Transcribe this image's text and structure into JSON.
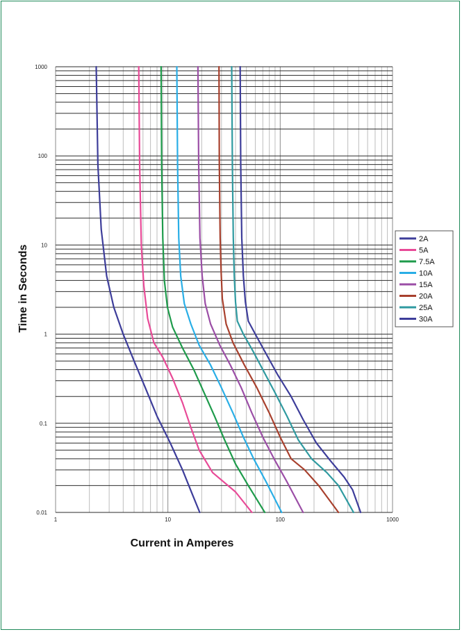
{
  "chart_data": {
    "type": "line",
    "xlabel": "Current in Amperes",
    "ylabel": "Time in Seconds",
    "x_scale": "log",
    "y_scale": "log",
    "xlim": [
      1,
      1000
    ],
    "ylim": [
      0.01,
      1000
    ],
    "x_ticks": [
      "1",
      "10",
      "100",
      "1000"
    ],
    "y_ticks": [
      "1000",
      "100",
      "10",
      "1",
      "0.1",
      "0.01"
    ],
    "grid": true,
    "legend_position": "right",
    "series": [
      {
        "name": "2A",
        "color": "#3d3d9a",
        "points": [
          [
            2.3,
            1000
          ],
          [
            2.38,
            80
          ],
          [
            2.55,
            15
          ],
          [
            2.85,
            4.5
          ],
          [
            3.3,
            2
          ],
          [
            4.0,
            1.0
          ],
          [
            5.0,
            0.5
          ],
          [
            6.3,
            0.25
          ],
          [
            8.0,
            0.12
          ],
          [
            10.5,
            0.06
          ],
          [
            13.5,
            0.03
          ],
          [
            16.5,
            0.016
          ],
          [
            19.2,
            0.01
          ]
        ]
      },
      {
        "name": "5A",
        "color": "#e84a97",
        "points": [
          [
            5.5,
            1000
          ],
          [
            5.6,
            80
          ],
          [
            5.8,
            10
          ],
          [
            6.1,
            3.5
          ],
          [
            6.6,
            1.5
          ],
          [
            7.5,
            0.8
          ],
          [
            9.0,
            0.55
          ],
          [
            11,
            0.32
          ],
          [
            13.5,
            0.17
          ],
          [
            16,
            0.09
          ],
          [
            19,
            0.05
          ],
          [
            25,
            0.028
          ],
          [
            40,
            0.017
          ],
          [
            56,
            0.01
          ]
        ]
      },
      {
        "name": "7.5A",
        "color": "#1e9b4b",
        "points": [
          [
            8.7,
            1000
          ],
          [
            8.8,
            80
          ],
          [
            9.0,
            12
          ],
          [
            9.3,
            4
          ],
          [
            9.9,
            2
          ],
          [
            11,
            1.2
          ],
          [
            13.5,
            0.7
          ],
          [
            17,
            0.4
          ],
          [
            21,
            0.22
          ],
          [
            26,
            0.12
          ],
          [
            32,
            0.065
          ],
          [
            40,
            0.035
          ],
          [
            52,
            0.02
          ],
          [
            73,
            0.01
          ]
        ]
      },
      {
        "name": "10A",
        "color": "#29aee6",
        "points": [
          [
            12,
            1000
          ],
          [
            12.2,
            80
          ],
          [
            12.5,
            12
          ],
          [
            13,
            4.5
          ],
          [
            14,
            2.2
          ],
          [
            16,
            1.3
          ],
          [
            19,
            0.75
          ],
          [
            24,
            0.45
          ],
          [
            30,
            0.25
          ],
          [
            38,
            0.13
          ],
          [
            47,
            0.07
          ],
          [
            58,
            0.04
          ],
          [
            75,
            0.022
          ],
          [
            103,
            0.01
          ]
        ]
      },
      {
        "name": "15A",
        "color": "#9b4ea6",
        "points": [
          [
            18.5,
            1000
          ],
          [
            18.8,
            80
          ],
          [
            19.3,
            12
          ],
          [
            20.2,
            4.5
          ],
          [
            21.5,
            2.2
          ],
          [
            24,
            1.3
          ],
          [
            29,
            0.75
          ],
          [
            36,
            0.45
          ],
          [
            45,
            0.25
          ],
          [
            56,
            0.13
          ],
          [
            70,
            0.07
          ],
          [
            88,
            0.04
          ],
          [
            115,
            0.022
          ],
          [
            160,
            0.01
          ]
        ]
      },
      {
        "name": "20A",
        "color": "#a8402d",
        "points": [
          [
            28.5,
            1000
          ],
          [
            28.7,
            80
          ],
          [
            29.2,
            12
          ],
          [
            29.8,
            5
          ],
          [
            30.5,
            2.5
          ],
          [
            33,
            1.3
          ],
          [
            38,
            0.8
          ],
          [
            48,
            0.45
          ],
          [
            62,
            0.25
          ],
          [
            80,
            0.13
          ],
          [
            100,
            0.07
          ],
          [
            125,
            0.04
          ],
          [
            165,
            0.03
          ],
          [
            220,
            0.02
          ],
          [
            330,
            0.01
          ]
        ]
      },
      {
        "name": "25A",
        "color": "#2f9aa0",
        "points": [
          [
            37,
            1000
          ],
          [
            37.5,
            80
          ],
          [
            38.2,
            12
          ],
          [
            39,
            4.5
          ],
          [
            40,
            2.3
          ],
          [
            41.5,
            1.4
          ],
          [
            47,
            1.0
          ],
          [
            57,
            0.65
          ],
          [
            70,
            0.4
          ],
          [
            90,
            0.22
          ],
          [
            115,
            0.12
          ],
          [
            145,
            0.065
          ],
          [
            190,
            0.04
          ],
          [
            260,
            0.028
          ],
          [
            330,
            0.02
          ],
          [
            450,
            0.01
          ]
        ]
      },
      {
        "name": "30A",
        "color": "#3d3d9a",
        "points": [
          [
            44,
            1000
          ],
          [
            44.5,
            80
          ],
          [
            45.5,
            12
          ],
          [
            47,
            4.5
          ],
          [
            49,
            2.3
          ],
          [
            52,
            1.4
          ],
          [
            60,
            1.0
          ],
          [
            75,
            0.6
          ],
          [
            95,
            0.35
          ],
          [
            125,
            0.2
          ],
          [
            160,
            0.11
          ],
          [
            210,
            0.06
          ],
          [
            280,
            0.038
          ],
          [
            370,
            0.025
          ],
          [
            440,
            0.018
          ],
          [
            520,
            0.01
          ]
        ]
      }
    ]
  }
}
